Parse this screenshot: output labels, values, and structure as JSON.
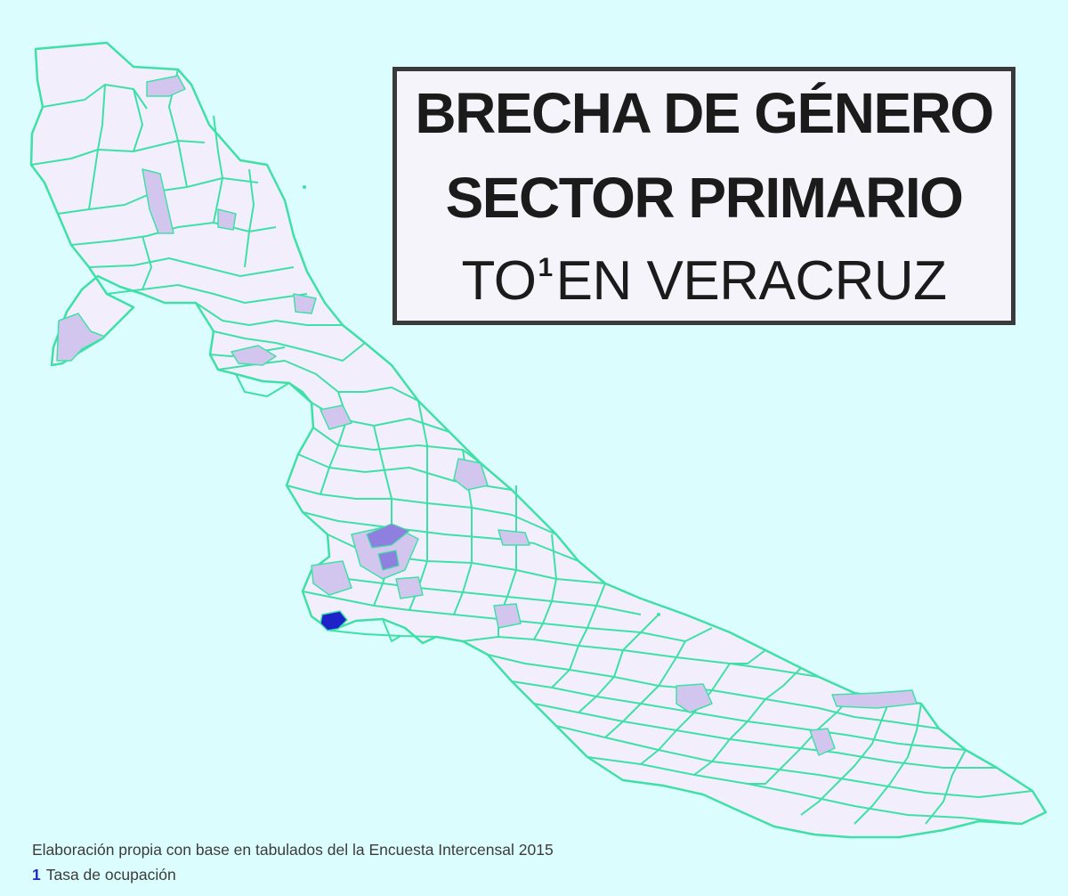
{
  "title": {
    "line1": "BRECHA DE GÉNERO",
    "line2": "SECTOR PRIMARIO",
    "line3_prefix": "TO",
    "line3_superscript": "1",
    "line3_suffix": "EN VERACRUZ"
  },
  "footnote": {
    "source": "Elaboración propia con base en tabulados del la Encuesta Intercensal 2015",
    "number": "1",
    "definition": "Tasa de ocupación"
  },
  "colors": {
    "background": "#dcfdfd",
    "region_outline": "#3fe0a8",
    "fill_light": "#f3eefb",
    "fill_medium": "#d2c6ef",
    "fill_dark": "#8f7fdf",
    "fill_max": "#1e22c9",
    "title_border": "#3a3a3a",
    "footnote_number": "#1b2bbd"
  },
  "map": {
    "region": "Veracruz",
    "unit": "municipio",
    "fill_levels": [
      "light",
      "medium",
      "dark",
      "max"
    ]
  }
}
